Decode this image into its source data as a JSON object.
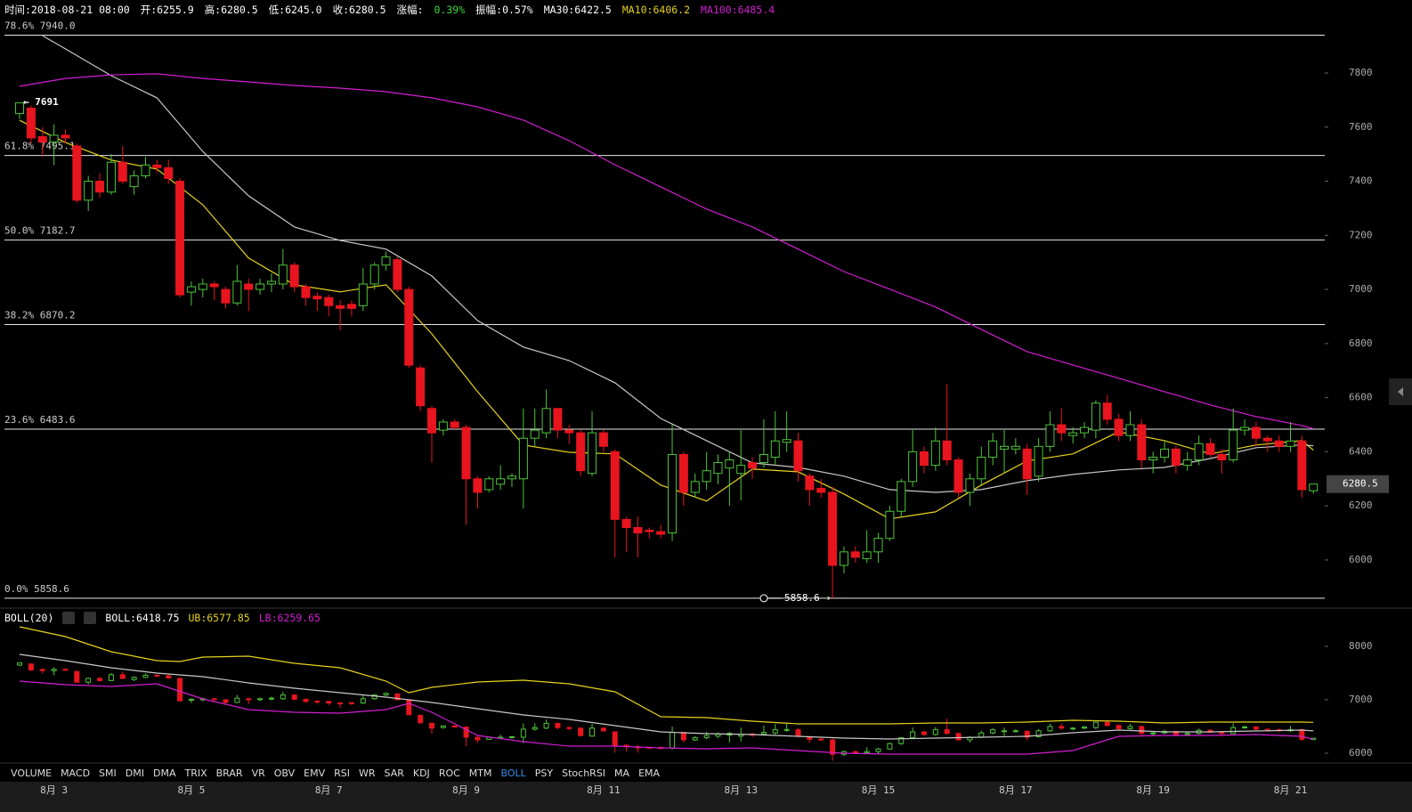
{
  "header": [
    {
      "text": "时间:2018-08-21 08:00",
      "color": "#ffffff"
    },
    {
      "text": "开:6255.9",
      "color": "#ffffff"
    },
    {
      "text": "高:6280.5",
      "color": "#ffffff"
    },
    {
      "text": "低:6245.0",
      "color": "#ffffff"
    },
    {
      "text": "收:6280.5",
      "color": "#ffffff"
    },
    {
      "text": "涨幅:",
      "color": "#ffffff"
    },
    {
      "text": "0.39%",
      "color": "#3fd63f"
    },
    {
      "text": "振幅:0.57%",
      "color": "#ffffff"
    },
    {
      "text": "MA30:6422.5",
      "color": "#ffffff"
    },
    {
      "text": "MA10:6406.2",
      "color": "#e6d21e"
    },
    {
      "text": "MA100:6485.4",
      "color": "#d21ed2"
    }
  ],
  "chart_data": [
    {
      "type": "candlestick",
      "categories": [
        null,
        null,
        null,
        "8月 3",
        null,
        null,
        null,
        null,
        null,
        null,
        null,
        null,
        null,
        null,
        null,
        "8月 5",
        null,
        null,
        null,
        null,
        null,
        null,
        null,
        null,
        null,
        null,
        null,
        "8月 7",
        null,
        null,
        null,
        null,
        null,
        null,
        null,
        null,
        null,
        null,
        null,
        "8月 9",
        null,
        null,
        null,
        null,
        null,
        null,
        null,
        null,
        null,
        null,
        null,
        "8月 11",
        null,
        null,
        null,
        null,
        null,
        null,
        null,
        null,
        null,
        null,
        null,
        "8月 13",
        null,
        null,
        null,
        null,
        null,
        null,
        null,
        null,
        null,
        null,
        null,
        "8月 15",
        null,
        null,
        null,
        null,
        null,
        null,
        null,
        null,
        null,
        null,
        null,
        "8月 17",
        null,
        null,
        null,
        null,
        null,
        null,
        null,
        null,
        null,
        null,
        null,
        "8月 19",
        null,
        null,
        null,
        null,
        null,
        null,
        null,
        null,
        null,
        null,
        null,
        "8月 21",
        null,
        null
      ],
      "open": [
        7650,
        7670,
        7565,
        7545,
        7570,
        7530,
        7330,
        7400,
        7360,
        7470,
        7380,
        7420,
        7460,
        7450,
        7400,
        6990,
        7000,
        7020,
        7000,
        6950,
        7020,
        7000,
        7020,
        7020,
        7090,
        7010,
        6975,
        6970,
        6940,
        6945,
        6940,
        7020,
        7090,
        7110,
        7000,
        6710,
        6560,
        6480,
        6510,
        6490,
        6300,
        6260,
        6280,
        6300,
        6300,
        6450,
        6470,
        6560,
        6480,
        6470,
        6320,
        6470,
        6400,
        6150,
        6120,
        6110,
        6105,
        6100,
        6390,
        6250,
        6290,
        6320,
        6340,
        6320,
        6360,
        6360,
        6380,
        6435,
        6440,
        6310,
        6265,
        6250,
        5980,
        6030,
        6005,
        6030,
        6080,
        6180,
        6290,
        6400,
        6350,
        6440,
        6370,
        6250,
        6300,
        6380,
        6410,
        6410,
        6410,
        6310,
        6420,
        6500,
        6460,
        6470,
        6480,
        6580,
        6520,
        6460,
        6500,
        6370,
        6380,
        6410,
        6350,
        6370,
        6430,
        6390,
        6370,
        6480,
        6490,
        6450,
        6440,
        6420,
        6440,
        6255.9
      ],
      "high": [
        7691,
        7680,
        7600,
        7610,
        7590,
        7540,
        7420,
        7430,
        7500,
        7530,
        7440,
        7490,
        7480,
        7480,
        7410,
        7030,
        7040,
        7030,
        7010,
        7090,
        7040,
        7040,
        7060,
        7150,
        7100,
        7020,
        6990,
        6980,
        6960,
        6960,
        7080,
        7100,
        7140,
        7120,
        7010,
        6720,
        6570,
        6520,
        6520,
        6500,
        6310,
        6310,
        6350,
        6320,
        6560,
        6560,
        6630,
        6560,
        6500,
        6480,
        6550,
        6480,
        6410,
        6160,
        6160,
        6120,
        6130,
        6500,
        6400,
        6320,
        6400,
        6390,
        6400,
        6480,
        6380,
        6520,
        6550,
        6550,
        6470,
        6320,
        6300,
        6270,
        6050,
        6050,
        6110,
        6100,
        6200,
        6300,
        6480,
        6420,
        6490,
        6650,
        6380,
        6320,
        6420,
        6470,
        6480,
        6450,
        6430,
        6450,
        6550,
        6560,
        6490,
        6510,
        6590,
        6610,
        6540,
        6550,
        6520,
        6400,
        6440,
        6420,
        6400,
        6460,
        6450,
        6410,
        6560,
        6520,
        6510,
        6460,
        6460,
        6510,
        6460,
        6280.5
      ],
      "low": [
        7630,
        7540,
        7490,
        7460,
        7540,
        7320,
        7290,
        7340,
        7350,
        7390,
        7350,
        7410,
        7430,
        7390,
        6970,
        6940,
        6970,
        6960,
        6930,
        6940,
        6920,
        6980,
        6990,
        7000,
        6990,
        6940,
        6920,
        6900,
        6850,
        6900,
        6920,
        7000,
        7070,
        6990,
        6710,
        6550,
        6360,
        6460,
        6480,
        6130,
        6190,
        6250,
        6260,
        6270,
        6190,
        6420,
        6450,
        6450,
        6430,
        6310,
        6310,
        6400,
        6010,
        6030,
        6010,
        6080,
        6080,
        6070,
        6200,
        6230,
        6260,
        6280,
        6200,
        6220,
        6300,
        6340,
        6350,
        6400,
        6290,
        6200,
        6230,
        5858.6,
        5950,
        5990,
        5990,
        5990,
        6070,
        6160,
        6270,
        6320,
        6330,
        6350,
        6230,
        6200,
        6280,
        6350,
        6320,
        6390,
        6240,
        6290,
        6400,
        6440,
        6430,
        6450,
        6450,
        6500,
        6440,
        6440,
        6340,
        6320,
        6360,
        6320,
        6330,
        6350,
        6380,
        6320,
        6360,
        6460,
        6420,
        6400,
        6400,
        6400,
        6230,
        6245.0
      ],
      "close": [
        7690,
        7560,
        7545,
        7570,
        7560,
        7330,
        7400,
        7360,
        7470,
        7400,
        7420,
        7460,
        7450,
        7410,
        6980,
        7010,
        7020,
        7010,
        6950,
        7030,
        7000,
        7020,
        7030,
        7090,
        7010,
        6970,
        6965,
        6940,
        6930,
        6930,
        7020,
        7090,
        7120,
        7000,
        6720,
        6570,
        6470,
        6510,
        6490,
        6300,
        6250,
        6300,
        6300,
        6310,
        6450,
        6480,
        6560,
        6480,
        6470,
        6330,
        6470,
        6420,
        6150,
        6120,
        6100,
        6105,
        6095,
        6390,
        6250,
        6290,
        6330,
        6360,
        6370,
        6350,
        6340,
        6390,
        6440,
        6445,
        6330,
        6260,
        6250,
        5980,
        6030,
        6010,
        6030,
        6080,
        6180,
        6290,
        6400,
        6350,
        6440,
        6370,
        6250,
        6300,
        6380,
        6440,
        6420,
        6420,
        6300,
        6420,
        6500,
        6470,
        6470,
        6490,
        6580,
        6520,
        6460,
        6500,
        6370,
        6380,
        6410,
        6350,
        6370,
        6430,
        6390,
        6370,
        6480,
        6490,
        6450,
        6440,
        6420,
        6440,
        6260,
        6280.5
      ],
      "up_color": "#4ec43a",
      "down_color": "#e8141e",
      "ylim": [
        5832,
        8004
      ],
      "yticks": [
        6000,
        6200,
        6400,
        6600,
        6800,
        7000,
        7200,
        7400,
        7600,
        7800
      ],
      "lines": [
        {
          "color": "#e6d21e",
          "x": [
            0,
            4,
            8,
            12,
            16,
            20,
            24,
            28,
            32,
            36,
            40,
            44,
            48,
            52,
            56,
            60,
            64,
            68,
            72,
            76,
            80,
            84,
            88,
            92,
            96,
            100,
            104,
            108,
            112,
            113
          ],
          "values": [
            7625,
            7543,
            7478,
            7445,
            7313,
            7116,
            7017,
            6991,
            7017,
            6836,
            6622,
            6425,
            6398,
            6392,
            6277,
            6218,
            6336,
            6326,
            6244,
            6152,
            6178,
            6277,
            6366,
            6392,
            6474,
            6441,
            6392,
            6425,
            6441,
            6406.2
          ]
        },
        {
          "color": "#c8c8c8",
          "x": [
            2,
            4,
            8,
            12,
            14,
            16,
            20,
            24,
            28,
            32,
            36,
            40,
            44,
            48,
            52,
            56,
            60,
            64,
            68,
            72,
            76,
            80,
            84,
            88,
            92,
            96,
            100,
            104,
            108,
            112,
            113
          ],
          "values": [
            7938,
            7889,
            7790,
            7708,
            7609,
            7510,
            7346,
            7231,
            7181,
            7149,
            7050,
            6885,
            6787,
            6737,
            6655,
            6523,
            6441,
            6359,
            6342,
            6310,
            6260,
            6250,
            6260,
            6293,
            6316,
            6333,
            6342,
            6375,
            6415,
            6425,
            6422.5
          ]
        },
        {
          "color": "#d21ed2",
          "x": [
            0,
            4,
            8,
            12,
            16,
            20,
            24,
            28,
            32,
            36,
            40,
            44,
            48,
            52,
            56,
            60,
            64,
            68,
            72,
            76,
            80,
            84,
            88,
            92,
            96,
            100,
            104,
            108,
            112,
            113
          ],
          "values": [
            7751,
            7780,
            7793,
            7797,
            7780,
            7767,
            7754,
            7744,
            7731,
            7708,
            7675,
            7626,
            7550,
            7461,
            7379,
            7297,
            7231,
            7149,
            7066,
            7001,
            6935,
            6852,
            6770,
            6721,
            6672,
            6622,
            6573,
            6530,
            6497,
            6485.4
          ]
        }
      ],
      "levels": [
        {
          "value": 7940.0,
          "label": "78.6% 7940.0"
        },
        {
          "value": 7495.1,
          "label": "61.8% 7495.1"
        },
        {
          "value": 7182.7,
          "label": "50.0% 7182.7"
        },
        {
          "value": 6870.2,
          "label": "38.2% 6870.2"
        },
        {
          "value": 6483.6,
          "label": "23.6% 6483.6"
        },
        {
          "value": 5858.6,
          "label": "0.0% 5858.6"
        }
      ],
      "annotations": [
        {
          "label": "← 7691",
          "value": 7691
        },
        {
          "label": "5858.6 ›",
          "value": 5858.6
        }
      ],
      "last_price": 6280.5
    },
    {
      "type": "boll",
      "title": "BOLL(20)",
      "legend": [
        {
          "text": "BOLL:6418.75",
          "color": "#ffffff"
        },
        {
          "text": "UB:6577.85",
          "color": "#e6d21e"
        },
        {
          "text": "LB:6259.65",
          "color": "#d21ed2"
        }
      ],
      "ylim": [
        5833,
        8433
      ],
      "yticks": [
        6000,
        7000,
        8000
      ],
      "lines": [
        {
          "color": "#c8c8c8",
          "x": [
            0,
            4,
            8,
            12,
            16,
            20,
            24,
            28,
            32,
            36,
            40,
            44,
            48,
            52,
            56,
            60,
            64,
            68,
            72,
            76,
            80,
            84,
            88,
            92,
            96,
            100,
            104,
            108,
            112,
            113
          ],
          "values": [
            7850,
            7733,
            7600,
            7500,
            7433,
            7317,
            7217,
            7133,
            7050,
            6950,
            6833,
            6717,
            6633,
            6517,
            6400,
            6367,
            6350,
            6317,
            6283,
            6267,
            6283,
            6300,
            6317,
            6383,
            6433,
            6400,
            6400,
            6417,
            6433,
            6418.75
          ]
        },
        {
          "color": "#e6d21e",
          "x": [
            0,
            4,
            8,
            12,
            14,
            16,
            20,
            24,
            28,
            32,
            34,
            36,
            40,
            44,
            48,
            52,
            56,
            60,
            64,
            68,
            72,
            76,
            80,
            84,
            88,
            92,
            96,
            100,
            104,
            108,
            112,
            113
          ],
          "values": [
            8367,
            8183,
            7900,
            7733,
            7717,
            7800,
            7817,
            7683,
            7600,
            7350,
            7133,
            7233,
            7333,
            7367,
            7300,
            7150,
            6683,
            6667,
            6600,
            6550,
            6550,
            6550,
            6567,
            6567,
            6583,
            6617,
            6600,
            6567,
            6583,
            6583,
            6583,
            6577.85
          ]
        },
        {
          "color": "#d21ed2",
          "x": [
            0,
            4,
            8,
            12,
            16,
            20,
            24,
            28,
            32,
            34,
            36,
            40,
            44,
            48,
            52,
            56,
            60,
            64,
            68,
            72,
            76,
            80,
            84,
            88,
            92,
            96,
            100,
            104,
            108,
            112,
            113
          ],
          "values": [
            7350,
            7283,
            7250,
            7300,
            7017,
            6817,
            6767,
            6750,
            6817,
            6933,
            6767,
            6333,
            6217,
            6133,
            6133,
            6100,
            6083,
            6100,
            6050,
            6000,
            5983,
            5983,
            5983,
            5983,
            6050,
            6317,
            6333,
            6333,
            6350,
            6317,
            6259.65
          ]
        }
      ]
    }
  ],
  "indicator_tabs": {
    "items": [
      "VOLUME",
      "MACD",
      "SMI",
      "DMI",
      "DMA",
      "TRIX",
      "BRAR",
      "VR",
      "OBV",
      "EMV",
      "RSI",
      "WR",
      "SAR",
      "KDJ",
      "ROC",
      "MTM",
      "BOLL",
      "PSY",
      "StochRSI",
      "MA",
      "EMA"
    ],
    "active": "BOLL",
    "active_color": "#3c8ce6"
  }
}
